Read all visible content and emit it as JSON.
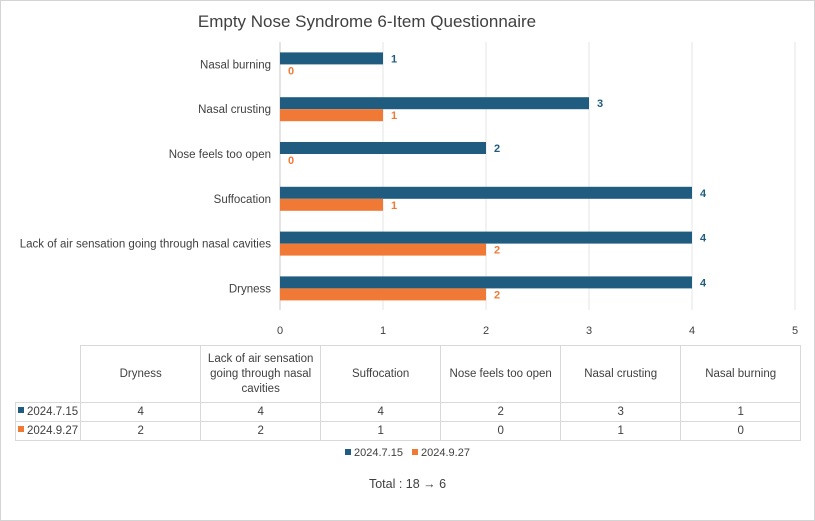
{
  "chart_data": {
    "type": "bar",
    "orientation": "horizontal",
    "title": "Empty Nose Syndrome 6-Item Questionnaire",
    "categories": [
      "Dryness",
      "Lack of air sensation going through nasal cavities",
      "Suffocation",
      "Nose feels too open",
      "Nasal crusting",
      "Nasal burning"
    ],
    "series": [
      {
        "name": "2024.7.15",
        "color": "#1f5c7f",
        "values": [
          4,
          4,
          4,
          2,
          3,
          1
        ]
      },
      {
        "name": "2024.9.27",
        "color": "#f07a35",
        "values": [
          2,
          2,
          1,
          0,
          1,
          0
        ]
      }
    ],
    "xlim": [
      0,
      5
    ],
    "xticks": [
      "0",
      "1",
      "2",
      "3",
      "4",
      "5"
    ],
    "grid": true,
    "legend_position": "bottom"
  },
  "table": {
    "headers": [
      "Dryness",
      "Lack of air sensation going through nasal cavities",
      "Suffocation",
      "Nose feels too open",
      "Nasal crusting",
      "Nasal burning"
    ],
    "rows": [
      {
        "label": "2024.7.15",
        "color": "#1f5c7f",
        "values": [
          "4",
          "4",
          "4",
          "2",
          "3",
          "1"
        ]
      },
      {
        "label": "2024.9.27",
        "color": "#f07a35",
        "values": [
          "2",
          "2",
          "1",
          "0",
          "1",
          "0"
        ]
      }
    ]
  },
  "legend": [
    "2024.7.15",
    "2024.9.27"
  ],
  "total_text": "Total : 18 → 6"
}
